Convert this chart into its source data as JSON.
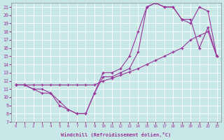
{
  "xlabel": "Windchill (Refroidissement éolien,°C)",
  "xlim": [
    -0.5,
    23.5
  ],
  "ylim": [
    7,
    21.5
  ],
  "xticks": [
    0,
    1,
    2,
    3,
    4,
    5,
    6,
    7,
    8,
    9,
    10,
    11,
    12,
    13,
    14,
    15,
    16,
    17,
    18,
    19,
    20,
    21,
    22,
    23
  ],
  "yticks": [
    7,
    8,
    9,
    10,
    11,
    12,
    13,
    14,
    15,
    16,
    17,
    18,
    19,
    20,
    21
  ],
  "background_color": "#c8e8e8",
  "grid_color": "#b0d0d0",
  "line_color": "#993399",
  "line1_x": [
    0,
    1,
    2,
    3,
    4,
    5,
    6,
    7,
    8,
    9,
    10,
    11,
    12,
    13,
    14,
    15,
    16,
    17,
    18,
    19,
    20,
    21,
    22,
    23
  ],
  "line1_y": [
    11.5,
    11.5,
    11.5,
    11.5,
    11.5,
    11.5,
    11.5,
    11.5,
    11.5,
    11.5,
    12.0,
    12.3,
    12.7,
    13.1,
    13.5,
    14.0,
    14.5,
    15.0,
    15.5,
    16.0,
    17.0,
    17.5,
    18.0,
    15.0
  ],
  "line2_x": [
    0,
    1,
    2,
    3,
    4,
    5,
    6,
    7,
    8,
    9,
    10,
    11,
    12,
    13,
    14,
    15,
    16,
    17,
    18,
    19,
    20,
    21,
    22,
    23
  ],
  "line2_y": [
    11.5,
    11.5,
    11.0,
    11.0,
    10.5,
    9.5,
    8.5,
    8.0,
    8.0,
    10.5,
    13.0,
    13.0,
    13.5,
    15.0,
    18.0,
    21.0,
    21.5,
    21.0,
    21.0,
    19.5,
    19.0,
    21.0,
    20.5,
    15.0
  ],
  "line3_x": [
    0,
    1,
    2,
    3,
    4,
    5,
    6,
    7,
    8,
    9,
    10,
    11,
    12,
    13,
    14,
    15,
    16,
    17,
    18,
    19,
    20,
    21,
    22,
    23
  ],
  "line3_y": [
    11.5,
    11.5,
    11.0,
    10.5,
    10.5,
    9.0,
    8.5,
    8.0,
    8.0,
    10.5,
    12.5,
    12.5,
    13.0,
    13.5,
    15.5,
    21.0,
    21.5,
    21.0,
    21.0,
    19.5,
    19.5,
    16.0,
    18.5,
    15.0
  ]
}
